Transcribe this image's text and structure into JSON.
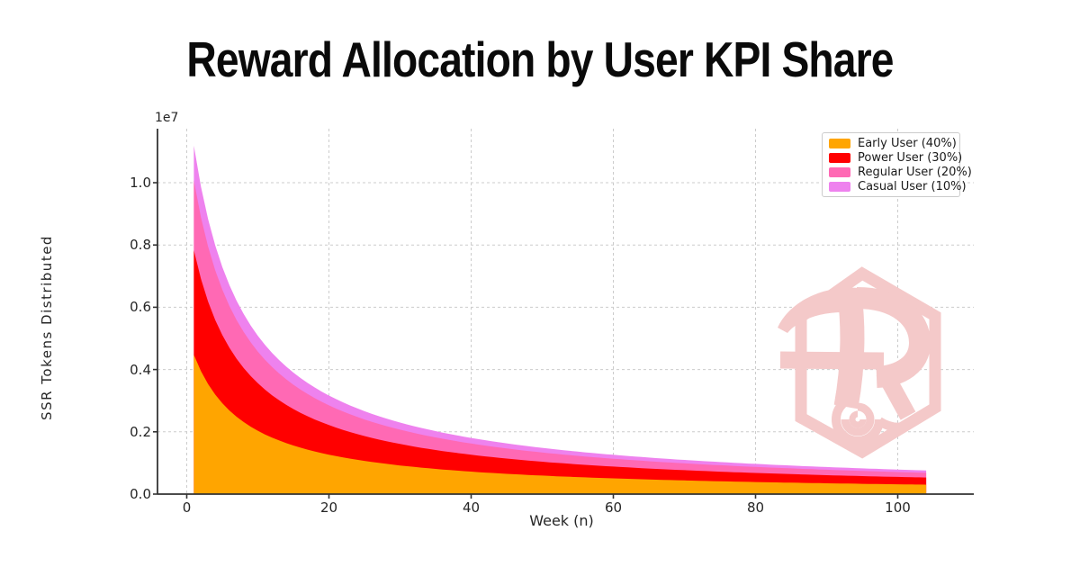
{
  "title": "Reward Allocation by User KPI Share",
  "chart_data": {
    "type": "area",
    "stacked": true,
    "title": "Reward Allocation by User KPI Share",
    "xlabel": "Week (n)",
    "ylabel": "SSR Tokens Distributed",
    "y_axis_offset_label": "1e7",
    "grid": true,
    "grid_style": "dashed",
    "legend_position": "upper right",
    "x_ticks": [
      0,
      20,
      40,
      60,
      80,
      100
    ],
    "y_ticks": [
      0.0,
      0.2,
      0.4,
      0.6,
      0.8,
      1.0
    ],
    "y_tick_labels": [
      "0.0",
      "0.2",
      "0.4",
      "0.6",
      "0.8",
      "1.0"
    ],
    "xlim": [
      -4,
      111
    ],
    "ylim_1e7": [
      0,
      1.173
    ],
    "x_weeks_range": [
      1,
      104
    ],
    "x_weeks_step": 1,
    "total_unit": "millions of SSR tokens",
    "total_millions": [
      11.187,
      9.871,
      8.832,
      7.99,
      7.296,
      6.712,
      6.215,
      5.786,
      5.413,
      5.085,
      4.794,
      4.535,
      4.303,
      4.093,
      3.902,
      3.729,
      3.57,
      3.424,
      3.29,
      3.166,
      3.051,
      2.945,
      2.844,
      2.751,
      2.663,
      2.582,
      2.504,
      2.432,
      2.363,
      2.299,
      2.237,
      2.179,
      2.124,
      2.072,
      2.022,
      1.974,
      1.929,
      1.886,
      1.844,
      1.804,
      1.766,
      1.73,
      1.695,
      1.661,
      1.629,
      1.598,
      1.568,
      1.539,
      1.512,
      1.485,
      1.459,
      1.434,
      1.41,
      1.387,
      1.364,
      1.342,
      1.321,
      1.301,
      1.281,
      1.262,
      1.243,
      1.225,
      1.207,
      1.19,
      1.173,
      1.157,
      1.141,
      1.126,
      1.111,
      1.097,
      1.083,
      1.069,
      1.055,
      1.042,
      1.03,
      1.017,
      1.005,
      0.993,
      0.981,
      0.97,
      0.959,
      0.948,
      0.937,
      0.927,
      0.917,
      0.907,
      0.897,
      0.888,
      0.878,
      0.869,
      0.86,
      0.852,
      0.843,
      0.835,
      0.827,
      0.819,
      0.811,
      0.803,
      0.795,
      0.788,
      0.78,
      0.773,
      0.766,
      0.759
    ],
    "series": [
      {
        "name": "Early User (40%)",
        "share": 0.4,
        "color": "#FFA500"
      },
      {
        "name": "Power User (30%)",
        "share": 0.3,
        "color": "#FF0000"
      },
      {
        "name": "Regular User (20%)",
        "share": 0.2,
        "color": "#FF69B4"
      },
      {
        "name": "Casual User (10%)",
        "share": 0.1,
        "color": "#EE82EE"
      }
    ]
  },
  "style_colors": {
    "gridline": "#cccccc",
    "spine": "#333333",
    "tick_label": "#262626",
    "title": "#0a0a0a",
    "watermark": "#f4c9c9",
    "background": "#ffffff"
  }
}
